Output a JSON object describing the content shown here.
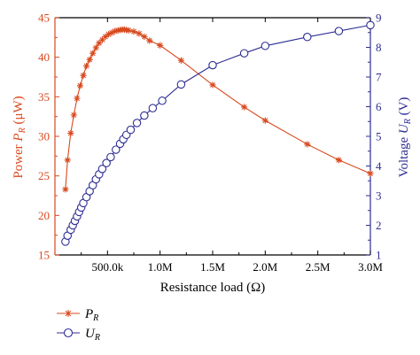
{
  "chart_data": {
    "type": "line",
    "colors": {
      "power": "#d8491e",
      "voltage": "#2d2e93",
      "axis": "#000000"
    },
    "x_axis": {
      "label": "Resistance load (Ω)",
      "range": [
        0,
        3000000
      ],
      "ticks": [
        {
          "value": 500000,
          "label": "500.0k"
        },
        {
          "value": 1000000,
          "label": "1.0M"
        },
        {
          "value": 1500000,
          "label": "1.5M"
        },
        {
          "value": 2000000,
          "label": "2.0M"
        },
        {
          "value": 2500000,
          "label": "2.5M"
        },
        {
          "value": 3000000,
          "label": "3.0M"
        }
      ]
    },
    "left_axis": {
      "label_main": "Power ",
      "label_var": "P",
      "label_sub": "R",
      "label_unit": " (μW)",
      "range": [
        15,
        45
      ],
      "ticks": [
        {
          "value": 15,
          "label": "15"
        },
        {
          "value": 20,
          "label": "20"
        },
        {
          "value": 25,
          "label": "25"
        },
        {
          "value": 30,
          "label": "30"
        },
        {
          "value": 35,
          "label": "35"
        },
        {
          "value": 40,
          "label": "40"
        },
        {
          "value": 45,
          "label": "45"
        }
      ]
    },
    "right_axis": {
      "label_main": "Voltage ",
      "label_var": "U",
      "label_sub": "R",
      "label_unit": " (V)",
      "range": [
        1,
        9
      ],
      "ticks": [
        {
          "value": 1,
          "label": "1"
        },
        {
          "value": 2,
          "label": "2"
        },
        {
          "value": 3,
          "label": "3"
        },
        {
          "value": 4,
          "label": "4"
        },
        {
          "value": 5,
          "label": "5"
        },
        {
          "value": 6,
          "label": "6"
        },
        {
          "value": 7,
          "label": "7"
        },
        {
          "value": 8,
          "label": "8"
        },
        {
          "value": 9,
          "label": "9"
        }
      ]
    },
    "legend": {
      "placement": "below-left"
    },
    "series": [
      {
        "name_var": "P",
        "name_sub": "R",
        "axis": "left",
        "marker": "asterisk",
        "x": [
          100000,
          120000,
          150000,
          180000,
          210000,
          240000,
          270000,
          300000,
          330000,
          360000,
          390000,
          420000,
          450000,
          480000,
          510000,
          540000,
          570000,
          600000,
          620000,
          640000,
          660000,
          680000,
          700000,
          750000,
          800000,
          850000,
          900000,
          1000000,
          1200000,
          1500000,
          1800000,
          2000000,
          2400000,
          2700000,
          3000000
        ],
        "values": [
          23.3,
          27.0,
          30.4,
          32.7,
          34.8,
          36.4,
          37.7,
          38.9,
          39.7,
          40.5,
          41.2,
          41.8,
          42.2,
          42.6,
          42.9,
          43.1,
          43.3,
          43.4,
          43.45,
          43.5,
          43.5,
          43.45,
          43.4,
          43.25,
          43.0,
          42.6,
          42.1,
          41.5,
          39.6,
          36.5,
          33.7,
          32.0,
          29.0,
          27.0,
          25.3
        ]
      },
      {
        "name_var": "U",
        "name_sub": "R",
        "axis": "right",
        "marker": "circle",
        "x": [
          100000,
          120000,
          150000,
          170000,
          190000,
          210000,
          230000,
          250000,
          270000,
          300000,
          330000,
          360000,
          390000,
          420000,
          450000,
          490000,
          530000,
          580000,
          620000,
          650000,
          680000,
          720000,
          780000,
          850000,
          930000,
          1020000,
          1200000,
          1500000,
          1800000,
          2000000,
          2400000,
          2700000,
          3000000
        ],
        "values": [
          1.45,
          1.65,
          1.85,
          2.0,
          2.15,
          2.3,
          2.45,
          2.6,
          2.75,
          2.95,
          3.15,
          3.35,
          3.55,
          3.72,
          3.9,
          4.1,
          4.3,
          4.55,
          4.75,
          4.9,
          5.05,
          5.22,
          5.45,
          5.7,
          5.95,
          6.2,
          6.75,
          7.4,
          7.8,
          8.05,
          8.35,
          8.55,
          8.75
        ]
      }
    ]
  }
}
